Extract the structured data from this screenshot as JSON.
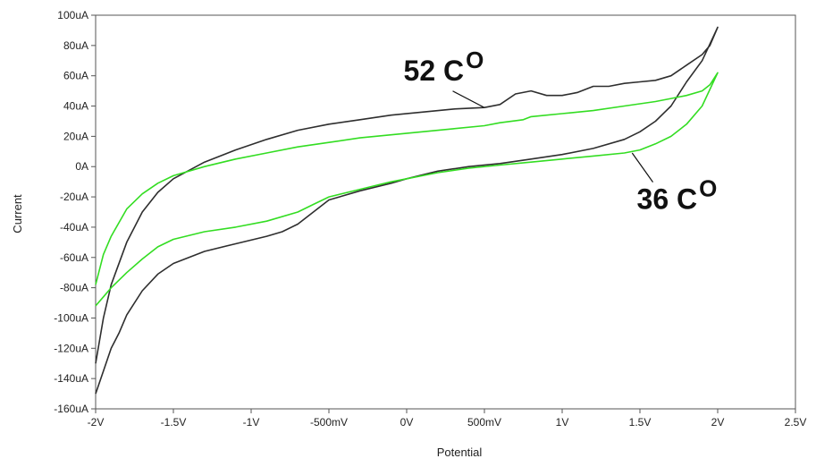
{
  "chart_data": {
    "type": "line",
    "title": "",
    "xlabel": "Potential",
    "ylabel": "Current",
    "xlim": [
      -2,
      2.5
    ],
    "ylim": [
      -160,
      100
    ],
    "x_unit": "V",
    "y_unit": "uA",
    "grid": false,
    "x_ticks": [
      -2,
      -1.5,
      -1,
      -0.5,
      0,
      0.5,
      1,
      1.5,
      2,
      2.5
    ],
    "x_tick_labels": [
      "-2V",
      "-1.5V",
      "-1V",
      "-500mV",
      "0V",
      "500mV",
      "1V",
      "1.5V",
      "2V",
      "2.5V"
    ],
    "y_ticks": [
      100,
      80,
      60,
      40,
      20,
      0,
      -20,
      -40,
      -60,
      -80,
      -100,
      -120,
      -140,
      -160
    ],
    "y_tick_labels": [
      "100uA",
      "80uA",
      "60uA",
      "40uA",
      "20uA",
      "0A",
      "-20uA",
      "-40uA",
      "-60uA",
      "-80uA",
      "-100uA",
      "-120uA",
      "-140uA",
      "-160uA"
    ],
    "series": [
      {
        "color": "#2e2e2e",
        "points": [
          [
            -2.0,
            -150
          ],
          [
            -1.95,
            -135
          ],
          [
            -1.9,
            -120
          ],
          [
            -1.85,
            -110
          ],
          [
            -1.8,
            -98
          ],
          [
            -1.7,
            -82
          ],
          [
            -1.6,
            -71
          ],
          [
            -1.5,
            -64
          ],
          [
            -1.3,
            -56
          ],
          [
            -1.1,
            -51
          ],
          [
            -0.9,
            -46
          ],
          [
            -0.8,
            -43
          ],
          [
            -0.7,
            -38
          ],
          [
            -0.6,
            -30
          ],
          [
            -0.5,
            -22
          ],
          [
            -0.3,
            -16
          ],
          [
            -0.1,
            -11
          ],
          [
            0.0,
            -8
          ],
          [
            0.2,
            -3
          ],
          [
            0.4,
            0
          ],
          [
            0.6,
            2
          ],
          [
            0.8,
            5
          ],
          [
            1.0,
            8
          ],
          [
            1.2,
            12
          ],
          [
            1.4,
            18
          ],
          [
            1.5,
            23
          ],
          [
            1.6,
            30
          ],
          [
            1.7,
            40
          ],
          [
            1.8,
            56
          ],
          [
            1.9,
            70
          ],
          [
            2.0,
            92
          ],
          [
            1.95,
            80
          ],
          [
            1.9,
            74
          ],
          [
            1.8,
            67
          ],
          [
            1.7,
            60
          ],
          [
            1.6,
            57
          ],
          [
            1.5,
            56
          ],
          [
            1.4,
            55
          ],
          [
            1.3,
            53
          ],
          [
            1.2,
            53
          ],
          [
            1.1,
            49
          ],
          [
            1.0,
            47
          ],
          [
            0.9,
            47
          ],
          [
            0.8,
            50
          ],
          [
            0.7,
            48
          ],
          [
            0.6,
            41
          ],
          [
            0.5,
            39
          ],
          [
            0.3,
            38
          ],
          [
            0.1,
            36
          ],
          [
            -0.1,
            34
          ],
          [
            -0.3,
            31
          ],
          [
            -0.5,
            28
          ],
          [
            -0.7,
            24
          ],
          [
            -0.9,
            18
          ],
          [
            -1.1,
            11
          ],
          [
            -1.3,
            3
          ],
          [
            -1.5,
            -8
          ],
          [
            -1.6,
            -17
          ],
          [
            -1.7,
            -30
          ],
          [
            -1.8,
            -50
          ],
          [
            -1.9,
            -78
          ],
          [
            -1.95,
            -100
          ],
          [
            -2.0,
            -130
          ]
        ]
      },
      {
        "color": "#33dd22",
        "points": [
          [
            -2.0,
            -92
          ],
          [
            -1.95,
            -86
          ],
          [
            -1.9,
            -80
          ],
          [
            -1.8,
            -70
          ],
          [
            -1.7,
            -61
          ],
          [
            -1.6,
            -53
          ],
          [
            -1.5,
            -48
          ],
          [
            -1.3,
            -43
          ],
          [
            -1.1,
            -40
          ],
          [
            -0.9,
            -36
          ],
          [
            -0.7,
            -30
          ],
          [
            -0.6,
            -25
          ],
          [
            -0.5,
            -20
          ],
          [
            -0.3,
            -15
          ],
          [
            -0.1,
            -10
          ],
          [
            0.0,
            -8
          ],
          [
            0.2,
            -4
          ],
          [
            0.4,
            -1
          ],
          [
            0.6,
            1
          ],
          [
            0.8,
            3
          ],
          [
            1.0,
            5
          ],
          [
            1.2,
            7
          ],
          [
            1.4,
            9
          ],
          [
            1.5,
            11
          ],
          [
            1.6,
            15
          ],
          [
            1.7,
            20
          ],
          [
            1.8,
            28
          ],
          [
            1.9,
            40
          ],
          [
            2.0,
            62
          ],
          [
            1.95,
            54
          ],
          [
            1.9,
            50
          ],
          [
            1.8,
            47
          ],
          [
            1.7,
            45
          ],
          [
            1.6,
            43
          ],
          [
            1.4,
            40
          ],
          [
            1.2,
            37
          ],
          [
            1.0,
            35
          ],
          [
            0.8,
            33
          ],
          [
            0.75,
            31
          ],
          [
            0.6,
            29
          ],
          [
            0.5,
            27
          ],
          [
            0.3,
            25
          ],
          [
            0.1,
            23
          ],
          [
            -0.1,
            21
          ],
          [
            -0.3,
            19
          ],
          [
            -0.5,
            16
          ],
          [
            -0.7,
            13
          ],
          [
            -0.9,
            9
          ],
          [
            -1.1,
            5
          ],
          [
            -1.3,
            0
          ],
          [
            -1.5,
            -6
          ],
          [
            -1.6,
            -11
          ],
          [
            -1.7,
            -18
          ],
          [
            -1.8,
            -28
          ],
          [
            -1.9,
            -46
          ],
          [
            -1.95,
            -58
          ],
          [
            -2.0,
            -78
          ]
        ]
      }
    ],
    "annotations": [
      {
        "base": "52 C",
        "sup": "O",
        "text_at": [
          -0.02,
          57
        ],
        "arrow_to": [
          0.5,
          39
        ]
      },
      {
        "base": "36 C",
        "sup": "O",
        "text_at": [
          1.48,
          -28
        ],
        "arrow_to": [
          1.45,
          9
        ]
      }
    ]
  }
}
